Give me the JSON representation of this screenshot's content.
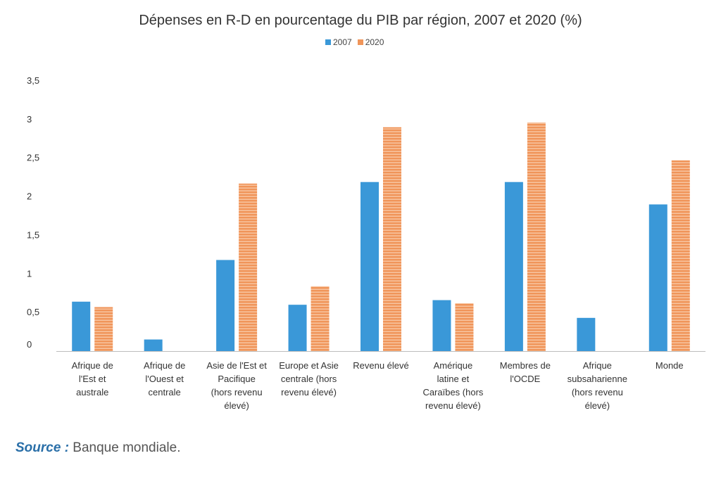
{
  "chart_data": {
    "type": "bar",
    "title": "Dépenses en R-D en pourcentage du PIB par région, 2007 et 2020 (%)",
    "categories": [
      [
        "Afrique de",
        "l'Est et",
        "australe"
      ],
      [
        "Afrique de",
        "l'Ouest et",
        "centrale"
      ],
      [
        "Asie de l'Est et",
        "Pacifique",
        "(hors revenu",
        "élevé)"
      ],
      [
        "Europe et Asie",
        "centrale (hors",
        "revenu élevé)"
      ],
      [
        "Revenu élevé"
      ],
      [
        "Amérique",
        "latine et",
        "Caraïbes (hors",
        "revenu élevé)"
      ],
      [
        "Membres de",
        "l'OCDE"
      ],
      [
        "Afrique",
        "subsaharienne",
        "(hors revenu",
        "élevé)"
      ],
      [
        "Monde"
      ]
    ],
    "series": [
      {
        "name": "2007",
        "color": "#3a98d8",
        "values": [
          0.64,
          0.15,
          1.18,
          0.6,
          2.19,
          0.66,
          2.19,
          0.43,
          1.9
        ]
      },
      {
        "name": "2020",
        "color": "#f0955a",
        "values": [
          0.57,
          null,
          2.17,
          0.84,
          2.9,
          0.62,
          2.96,
          null,
          2.47
        ]
      }
    ],
    "yticks": [
      "0",
      "0,5",
      "1",
      "1,5",
      "2",
      "2,5",
      "3",
      "3,5"
    ],
    "ylim": [
      0,
      3.5
    ],
    "legend_position": "top-center",
    "grid": false
  },
  "source": {
    "label": "Source :",
    "text": " Banque mondiale."
  }
}
